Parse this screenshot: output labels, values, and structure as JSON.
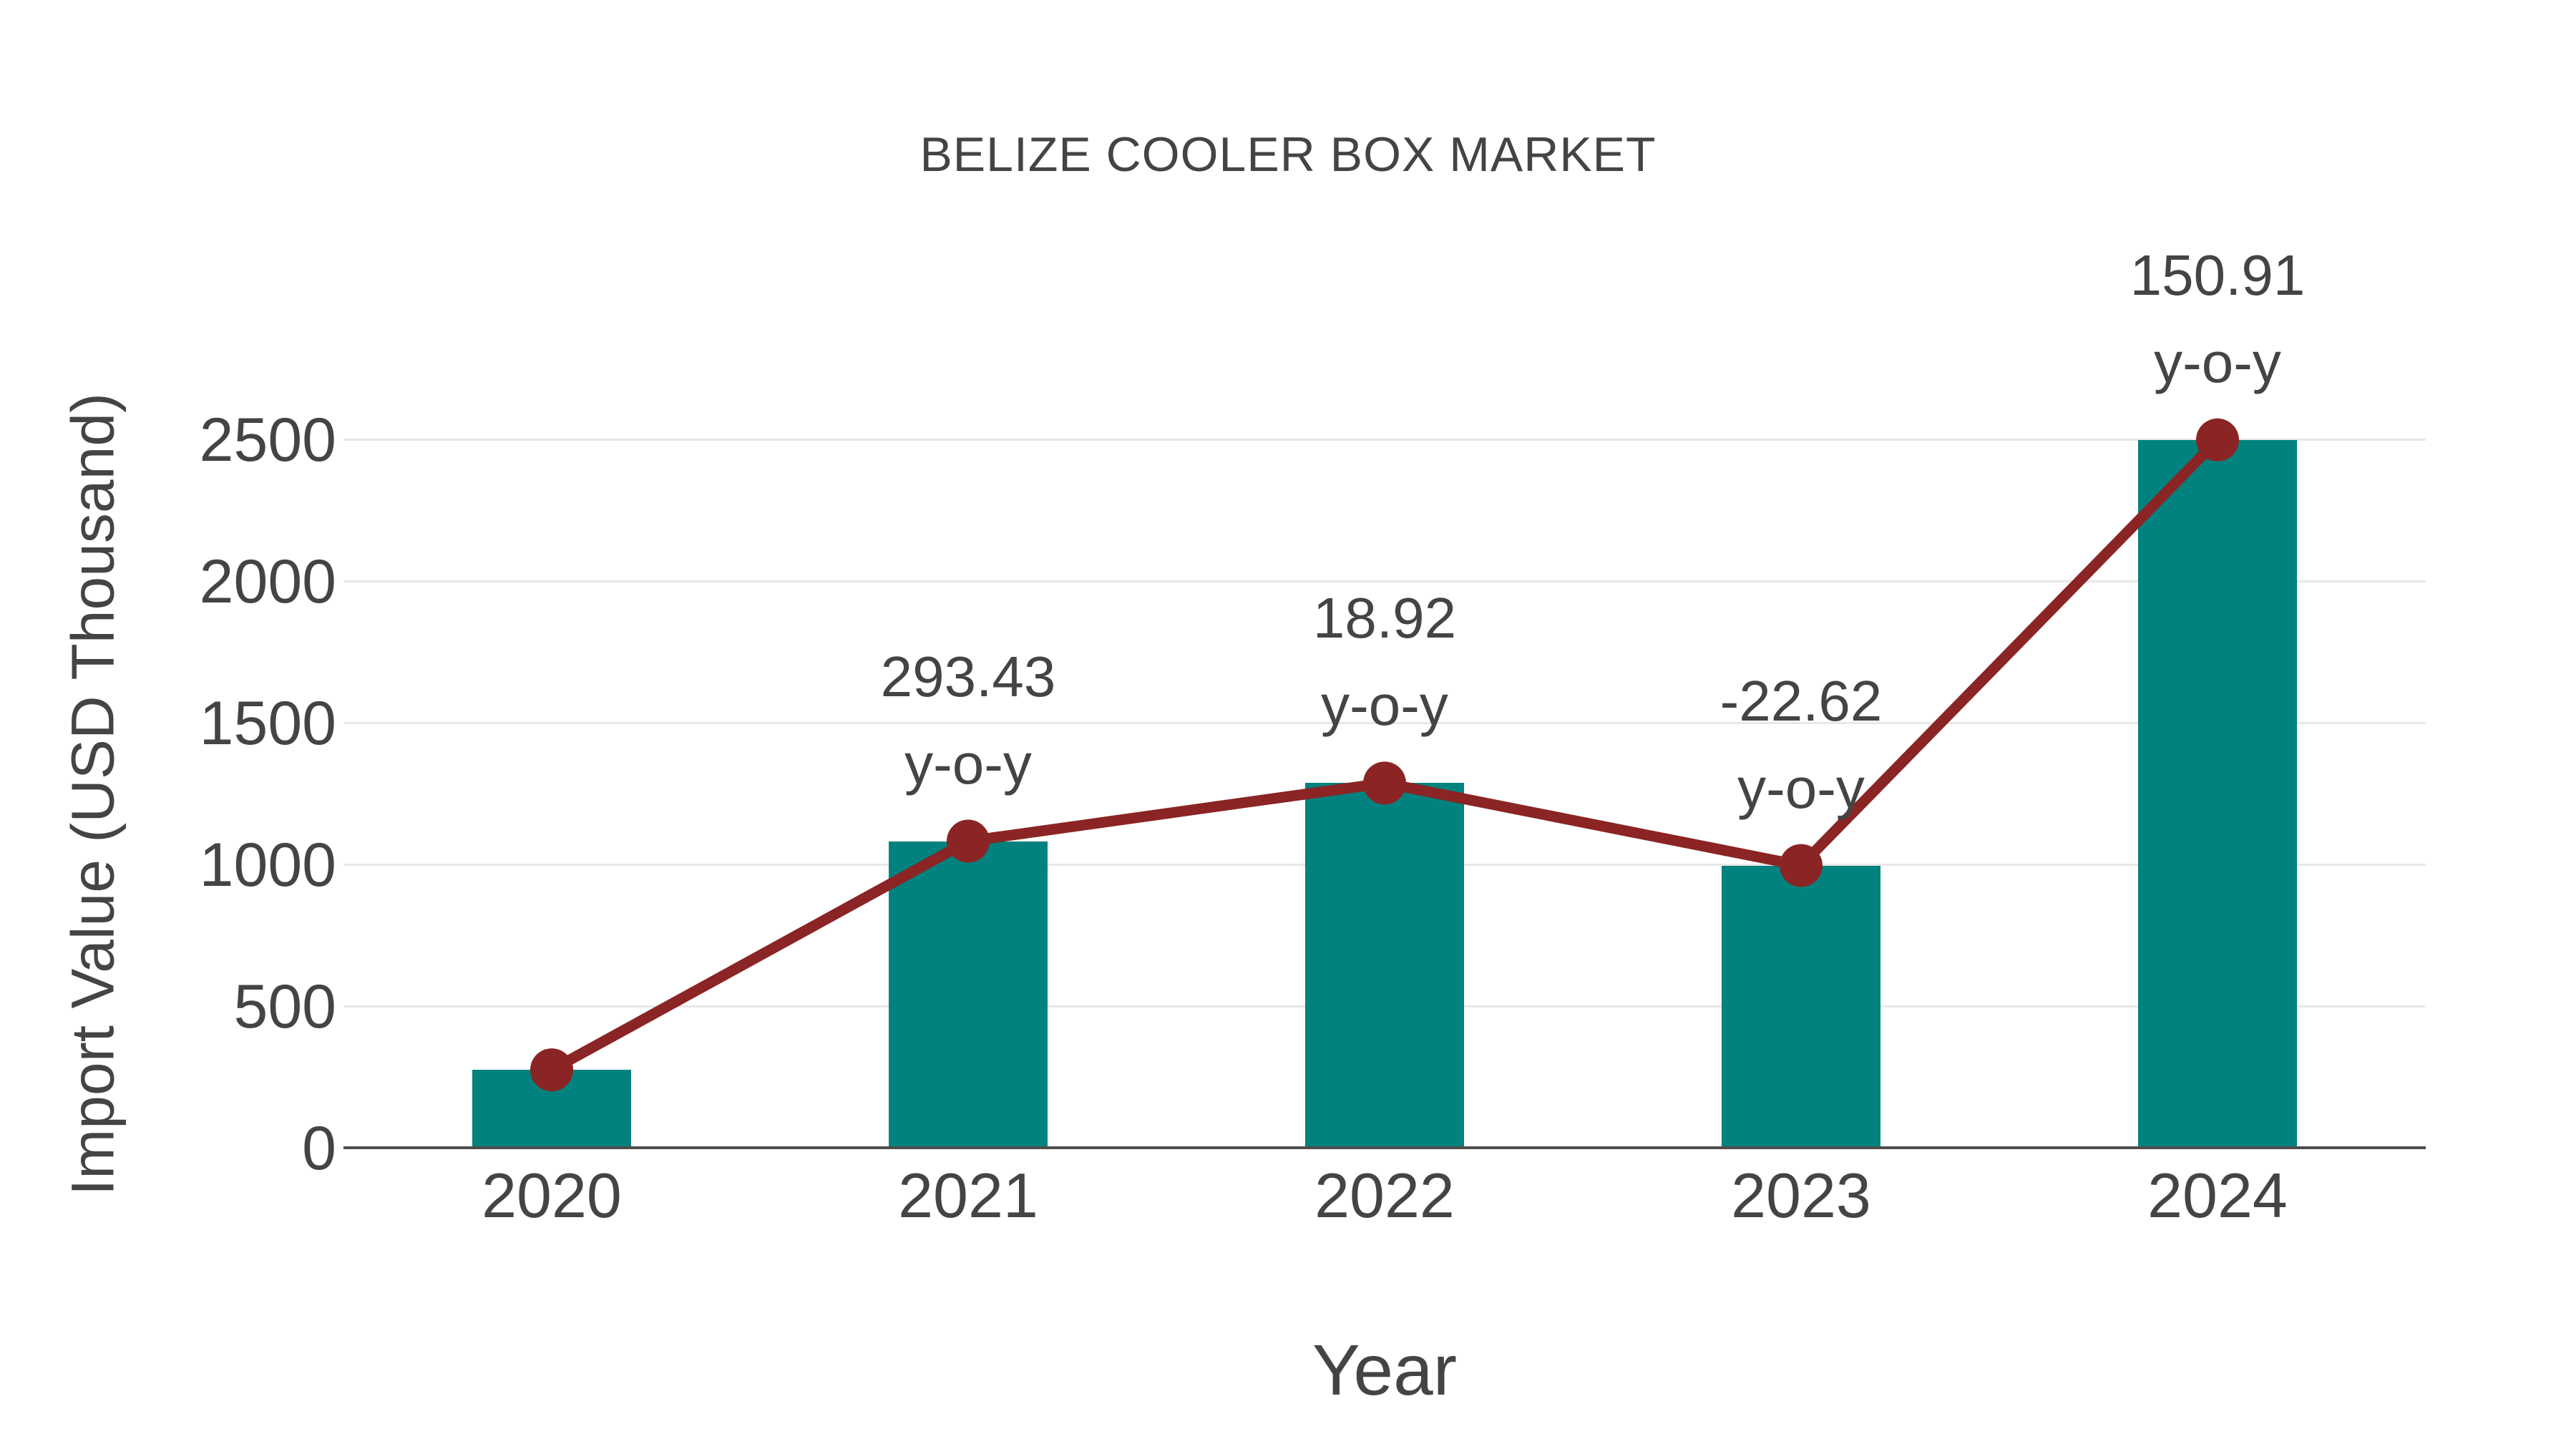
{
  "title": "BELIZE COOLER BOX MARKET",
  "colors": {
    "background": "#FFFFFF",
    "bar": "#01827E",
    "line": "#8B2424",
    "marker": "#8B2424",
    "grid": "#E8E8E8",
    "axis": "#4D4D4D",
    "text": "#444444"
  },
  "chart_data": {
    "type": "bar",
    "title": "BELIZE COOLER BOX MARKET",
    "xlabel": "Year",
    "ylabel": "Import Value (USD Thousand)",
    "categories": [
      "2020",
      "2021",
      "2022",
      "2023",
      "2024"
    ],
    "series": [
      {
        "name": "Import Value (USD Thousand)",
        "type": "bar",
        "color": "#01827E",
        "values": [
          275,
          1082,
          1287,
          996,
          2498
        ]
      },
      {
        "name": "Import Value trend",
        "type": "line",
        "color": "#8B2424",
        "values": [
          275,
          1082,
          1287,
          996,
          2498
        ]
      }
    ],
    "yticks": [
      0,
      500,
      1000,
      1500,
      2000,
      2500
    ],
    "ylim": [
      0,
      2500
    ],
    "grid": true,
    "legend": false,
    "annotations": [
      {
        "category": "2021",
        "value_text": "293.43",
        "label_text": "y-o-y"
      },
      {
        "category": "2022",
        "value_text": "18.92",
        "label_text": "y-o-y"
      },
      {
        "category": "2023",
        "value_text": "-22.62",
        "label_text": "y-o-y"
      },
      {
        "category": "2024",
        "value_text": "150.91",
        "label_text": "y-o-y"
      }
    ]
  }
}
